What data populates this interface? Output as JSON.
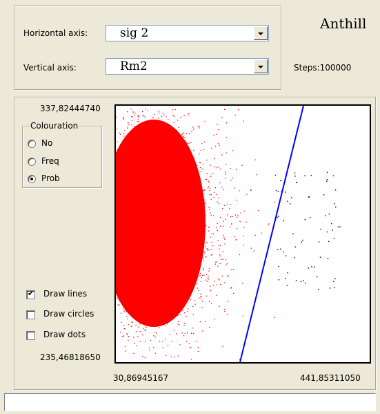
{
  "app_title": "Anthill",
  "controls": {
    "horizontal_axis_label": "Horizontal axis:",
    "horizontal_axis_value": "sig 2",
    "vertical_axis_label": "Vertical axis:",
    "vertical_axis_value": "Rm2",
    "steps": "Steps:100000"
  },
  "colouration": {
    "title": "Colouration",
    "options": [
      "No",
      "Freq",
      "Prob"
    ],
    "selected": "Prob"
  },
  "draw_options": [
    {
      "label": "Draw lines",
      "checked": true
    },
    {
      "label": "Draw circles",
      "checked": false
    },
    {
      "label": "Draw dots",
      "checked": false
    }
  ],
  "plot": {
    "y_max_label": "337,82444740",
    "y_min_label": "235,46818650",
    "x_min_label": "30,86945167",
    "x_max_label": "441,85311050"
  },
  "colors": {
    "points_primary": "#ff0000",
    "points_secondary": "#0000cc",
    "line": "#0000ff"
  },
  "status_text": ""
}
